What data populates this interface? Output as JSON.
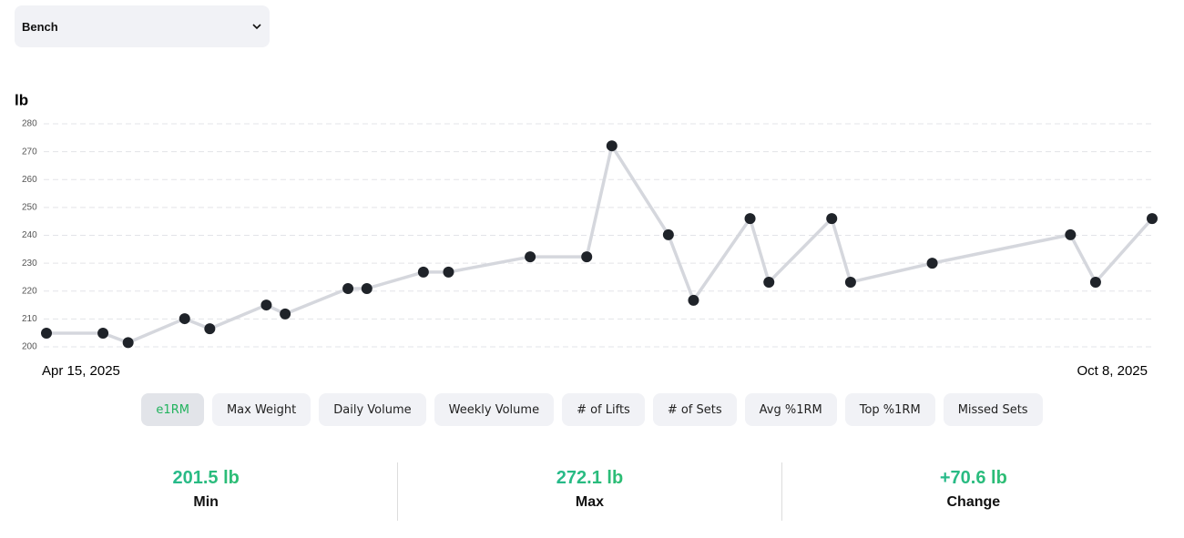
{
  "selector": {
    "label": "Bench"
  },
  "chart_data": {
    "type": "line",
    "y_label": "lb",
    "x": [
      0,
      9,
      13,
      22,
      26,
      35,
      38,
      48,
      51,
      60,
      64,
      77,
      86,
      90,
      99,
      103,
      112,
      115,
      125,
      128,
      141,
      163,
      167,
      176
    ],
    "values": [
      204.9,
      204.9,
      201.5,
      210.1,
      206.5,
      215.0,
      211.8,
      220.9,
      220.9,
      226.8,
      226.8,
      232.3,
      232.3,
      272.1,
      240.2,
      216.7,
      246.0,
      223.2,
      246.0,
      223.2,
      230.0,
      240.2,
      223.2,
      246.0
    ],
    "xlim": [
      0,
      176
    ],
    "xticks": [
      {
        "value": 0,
        "label": "Apr 15, 2025"
      },
      {
        "value": 176,
        "label": "Oct 8, 2025"
      }
    ],
    "ylim": [
      200,
      280
    ],
    "yticks": [
      200,
      210,
      220,
      230,
      240,
      250,
      260,
      270,
      280
    ],
    "grid": true,
    "color": "#d5d7dd",
    "marker_color": "#1f2329"
  },
  "tabs": [
    {
      "label": "e1RM",
      "active": true
    },
    {
      "label": "Max Weight",
      "active": false
    },
    {
      "label": "Daily Volume",
      "active": false
    },
    {
      "label": "Weekly Volume",
      "active": false
    },
    {
      "label": "# of Lifts",
      "active": false
    },
    {
      "label": "# of Sets",
      "active": false
    },
    {
      "label": "Avg %1RM",
      "active": false
    },
    {
      "label": "Top %1RM",
      "active": false
    },
    {
      "label": "Missed Sets",
      "active": false
    }
  ],
  "stats": [
    {
      "value": "201.5 lb",
      "label": "Min"
    },
    {
      "value": "272.1 lb",
      "label": "Max"
    },
    {
      "value": "+70.6 lb",
      "label": "Change"
    }
  ]
}
